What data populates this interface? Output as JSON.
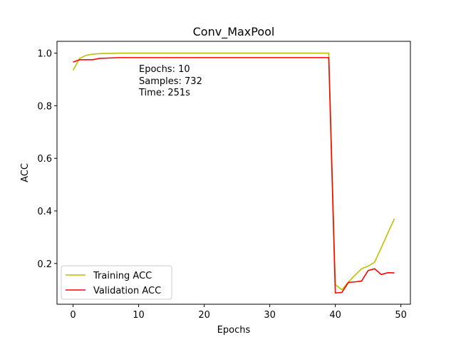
{
  "chart_data": {
    "type": "line",
    "title": "Conv_MaxPool",
    "xlabel": "Epochs",
    "ylabel": "ACC",
    "xlim": [
      -2.45,
      51.45
    ],
    "ylim": [
      0.045,
      1.045
    ],
    "xticks": [
      0,
      10,
      20,
      30,
      40,
      50
    ],
    "yticks": [
      0.2,
      0.4,
      0.6,
      0.8,
      1.0
    ],
    "xtick_labels": [
      "0",
      "10",
      "20",
      "30",
      "40",
      "50"
    ],
    "ytick_labels": [
      "0.2",
      "0.4",
      "0.6",
      "0.8",
      "1.0"
    ],
    "grid": false,
    "legend_position": "lower-left",
    "annotation_lines": [
      "Epochs: 10",
      "Samples: 732",
      "Time: 251s"
    ],
    "series": [
      {
        "name": "Training ACC",
        "color": "#bfbf00",
        "x": [
          0,
          1,
          2,
          3,
          4,
          5,
          6,
          7,
          8,
          9,
          10,
          11,
          12,
          13,
          14,
          15,
          16,
          17,
          18,
          19,
          20,
          21,
          22,
          23,
          24,
          25,
          26,
          27,
          28,
          29,
          30,
          31,
          32,
          33,
          34,
          35,
          36,
          37,
          38,
          39,
          40,
          41,
          42,
          43,
          44,
          45,
          46,
          47,
          48,
          49
        ],
        "values": [
          0.935,
          0.98,
          0.992,
          0.996,
          0.998,
          0.999,
          0.999,
          1.0,
          1.0,
          1.0,
          1.0,
          1.0,
          1.0,
          1.0,
          1.0,
          1.0,
          1.0,
          1.0,
          1.0,
          1.0,
          1.0,
          1.0,
          1.0,
          1.0,
          1.0,
          1.0,
          1.0,
          1.0,
          1.0,
          1.0,
          1.0,
          1.0,
          1.0,
          1.0,
          1.0,
          1.0,
          1.0,
          1.0,
          1.0,
          1.0,
          0.12,
          0.1,
          0.13,
          0.155,
          0.18,
          0.19,
          0.205,
          0.26,
          0.315,
          0.37
        ]
      },
      {
        "name": "Validation ACC",
        "color": "#ff0000",
        "x": [
          0,
          1,
          2,
          3,
          4,
          5,
          6,
          7,
          8,
          9,
          10,
          11,
          12,
          13,
          14,
          15,
          16,
          17,
          18,
          19,
          20,
          21,
          22,
          23,
          24,
          25,
          26,
          27,
          28,
          29,
          30,
          31,
          32,
          33,
          34,
          35,
          36,
          37,
          38,
          39,
          40,
          41,
          42,
          43,
          44,
          45,
          46,
          47,
          48,
          49
        ],
        "values": [
          0.966,
          0.975,
          0.975,
          0.975,
          0.98,
          0.981,
          0.982,
          0.983,
          0.983,
          0.983,
          0.983,
          0.983,
          0.983,
          0.983,
          0.983,
          0.983,
          0.983,
          0.983,
          0.983,
          0.983,
          0.983,
          0.983,
          0.983,
          0.983,
          0.983,
          0.983,
          0.983,
          0.983,
          0.983,
          0.983,
          0.983,
          0.983,
          0.983,
          0.983,
          0.983,
          0.983,
          0.983,
          0.983,
          0.983,
          0.983,
          0.088,
          0.09,
          0.128,
          0.13,
          0.133,
          0.173,
          0.18,
          0.158,
          0.165,
          0.164
        ]
      }
    ]
  }
}
